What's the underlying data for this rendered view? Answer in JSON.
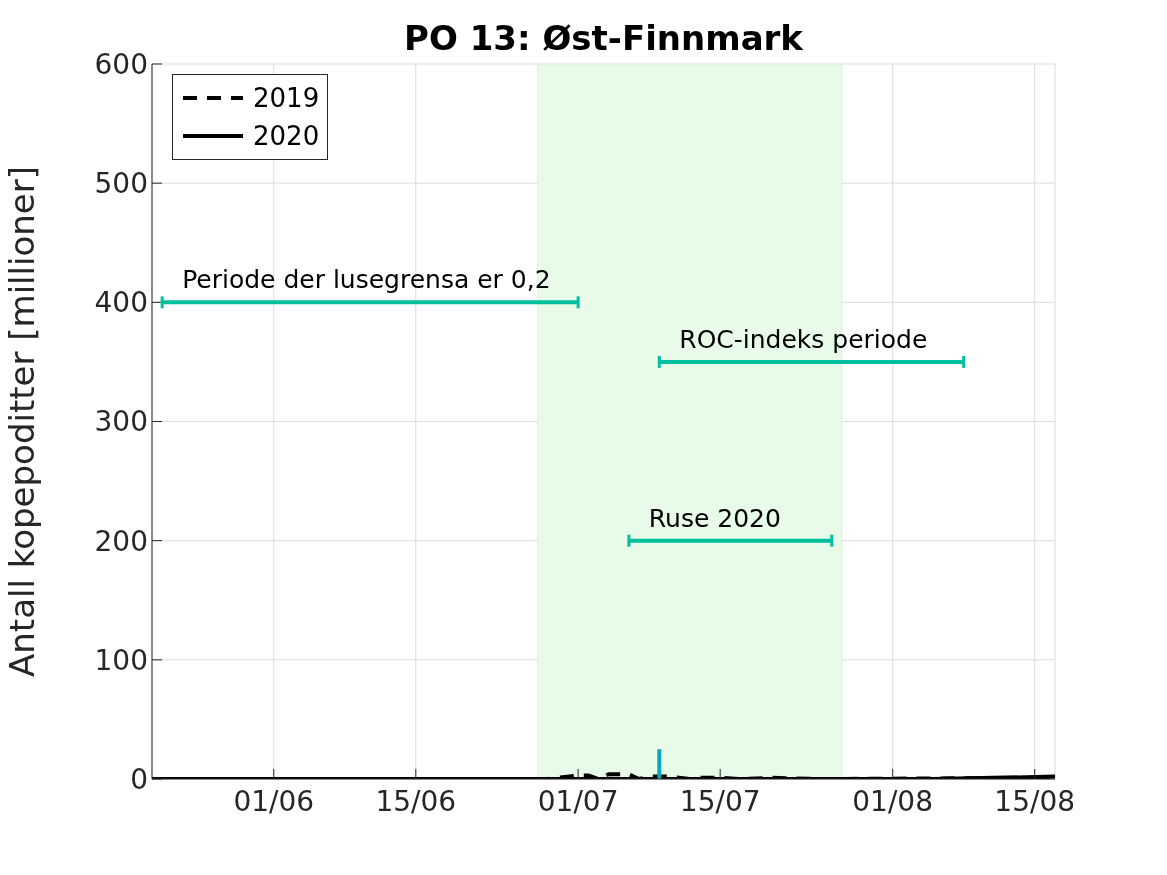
{
  "chart_data": {
    "type": "line",
    "title": "PO 13: Øst-Finnmark",
    "ylabel": "Antall kopepoditter [millioner]",
    "xlim": [
      "--05-20",
      "--08-17"
    ],
    "xticks": [
      {
        "value": "--06-01",
        "label": "01/06"
      },
      {
        "value": "--06-15",
        "label": "15/06"
      },
      {
        "value": "--07-01",
        "label": "01/07"
      },
      {
        "value": "--07-15",
        "label": "15/07"
      },
      {
        "value": "--08-01",
        "label": "01/08"
      },
      {
        "value": "--08-15",
        "label": "15/08"
      }
    ],
    "ylim": [
      0,
      600
    ],
    "yticks": [
      0,
      100,
      200,
      300,
      400,
      500,
      600
    ],
    "grid": true,
    "legend": "top left",
    "bands": [
      {
        "axis": "x",
        "from": "--06-27",
        "to": "--07-27",
        "color": "#e8fbe8"
      }
    ],
    "series": [
      {
        "name": "2019",
        "color": "#000000",
        "line_style": "dashed",
        "x": [
          "--05-20",
          "--06-28",
          "--07-01",
          "--07-02",
          "--07-03",
          "--07-04",
          "--07-06",
          "--07-07",
          "--07-08",
          "--07-10",
          "--07-12",
          "--07-13",
          "--07-15",
          "--07-17",
          "--07-20",
          "--07-25",
          "--08-17"
        ],
        "values": [
          0,
          0,
          3,
          3,
          0,
          4,
          4,
          0,
          2,
          2,
          0,
          1,
          1,
          0,
          1,
          0,
          1
        ]
      },
      {
        "name": "2020",
        "color": "#000000",
        "line_style": "solid",
        "x": [
          "--05-20",
          "--06-05",
          "--06-20",
          "--07-20",
          "--08-05",
          "--08-17"
        ],
        "values": [
          0,
          0,
          0,
          0,
          0,
          2
        ]
      },
      {
        "name": "Periode der lusegrensa er 0,2",
        "color": "#00bf9f",
        "x": [
          "--05-21",
          "--07-01"
        ],
        "values": [
          400,
          400
        ]
      },
      {
        "name": "ROC-indeks periode",
        "color": "#00bf9f",
        "x": [
          "--07-09",
          "--08-08"
        ],
        "values": [
          350,
          350
        ]
      },
      {
        "name": "Ruse 2020",
        "color": "#00bf9f",
        "x": [
          "--07-06",
          "--07-26"
        ],
        "values": [
          200,
          200
        ]
      },
      {
        "color": "#0aa5b8",
        "x": [
          "--07-09",
          "--07-09"
        ],
        "values": [
          0,
          25
        ]
      }
    ]
  }
}
